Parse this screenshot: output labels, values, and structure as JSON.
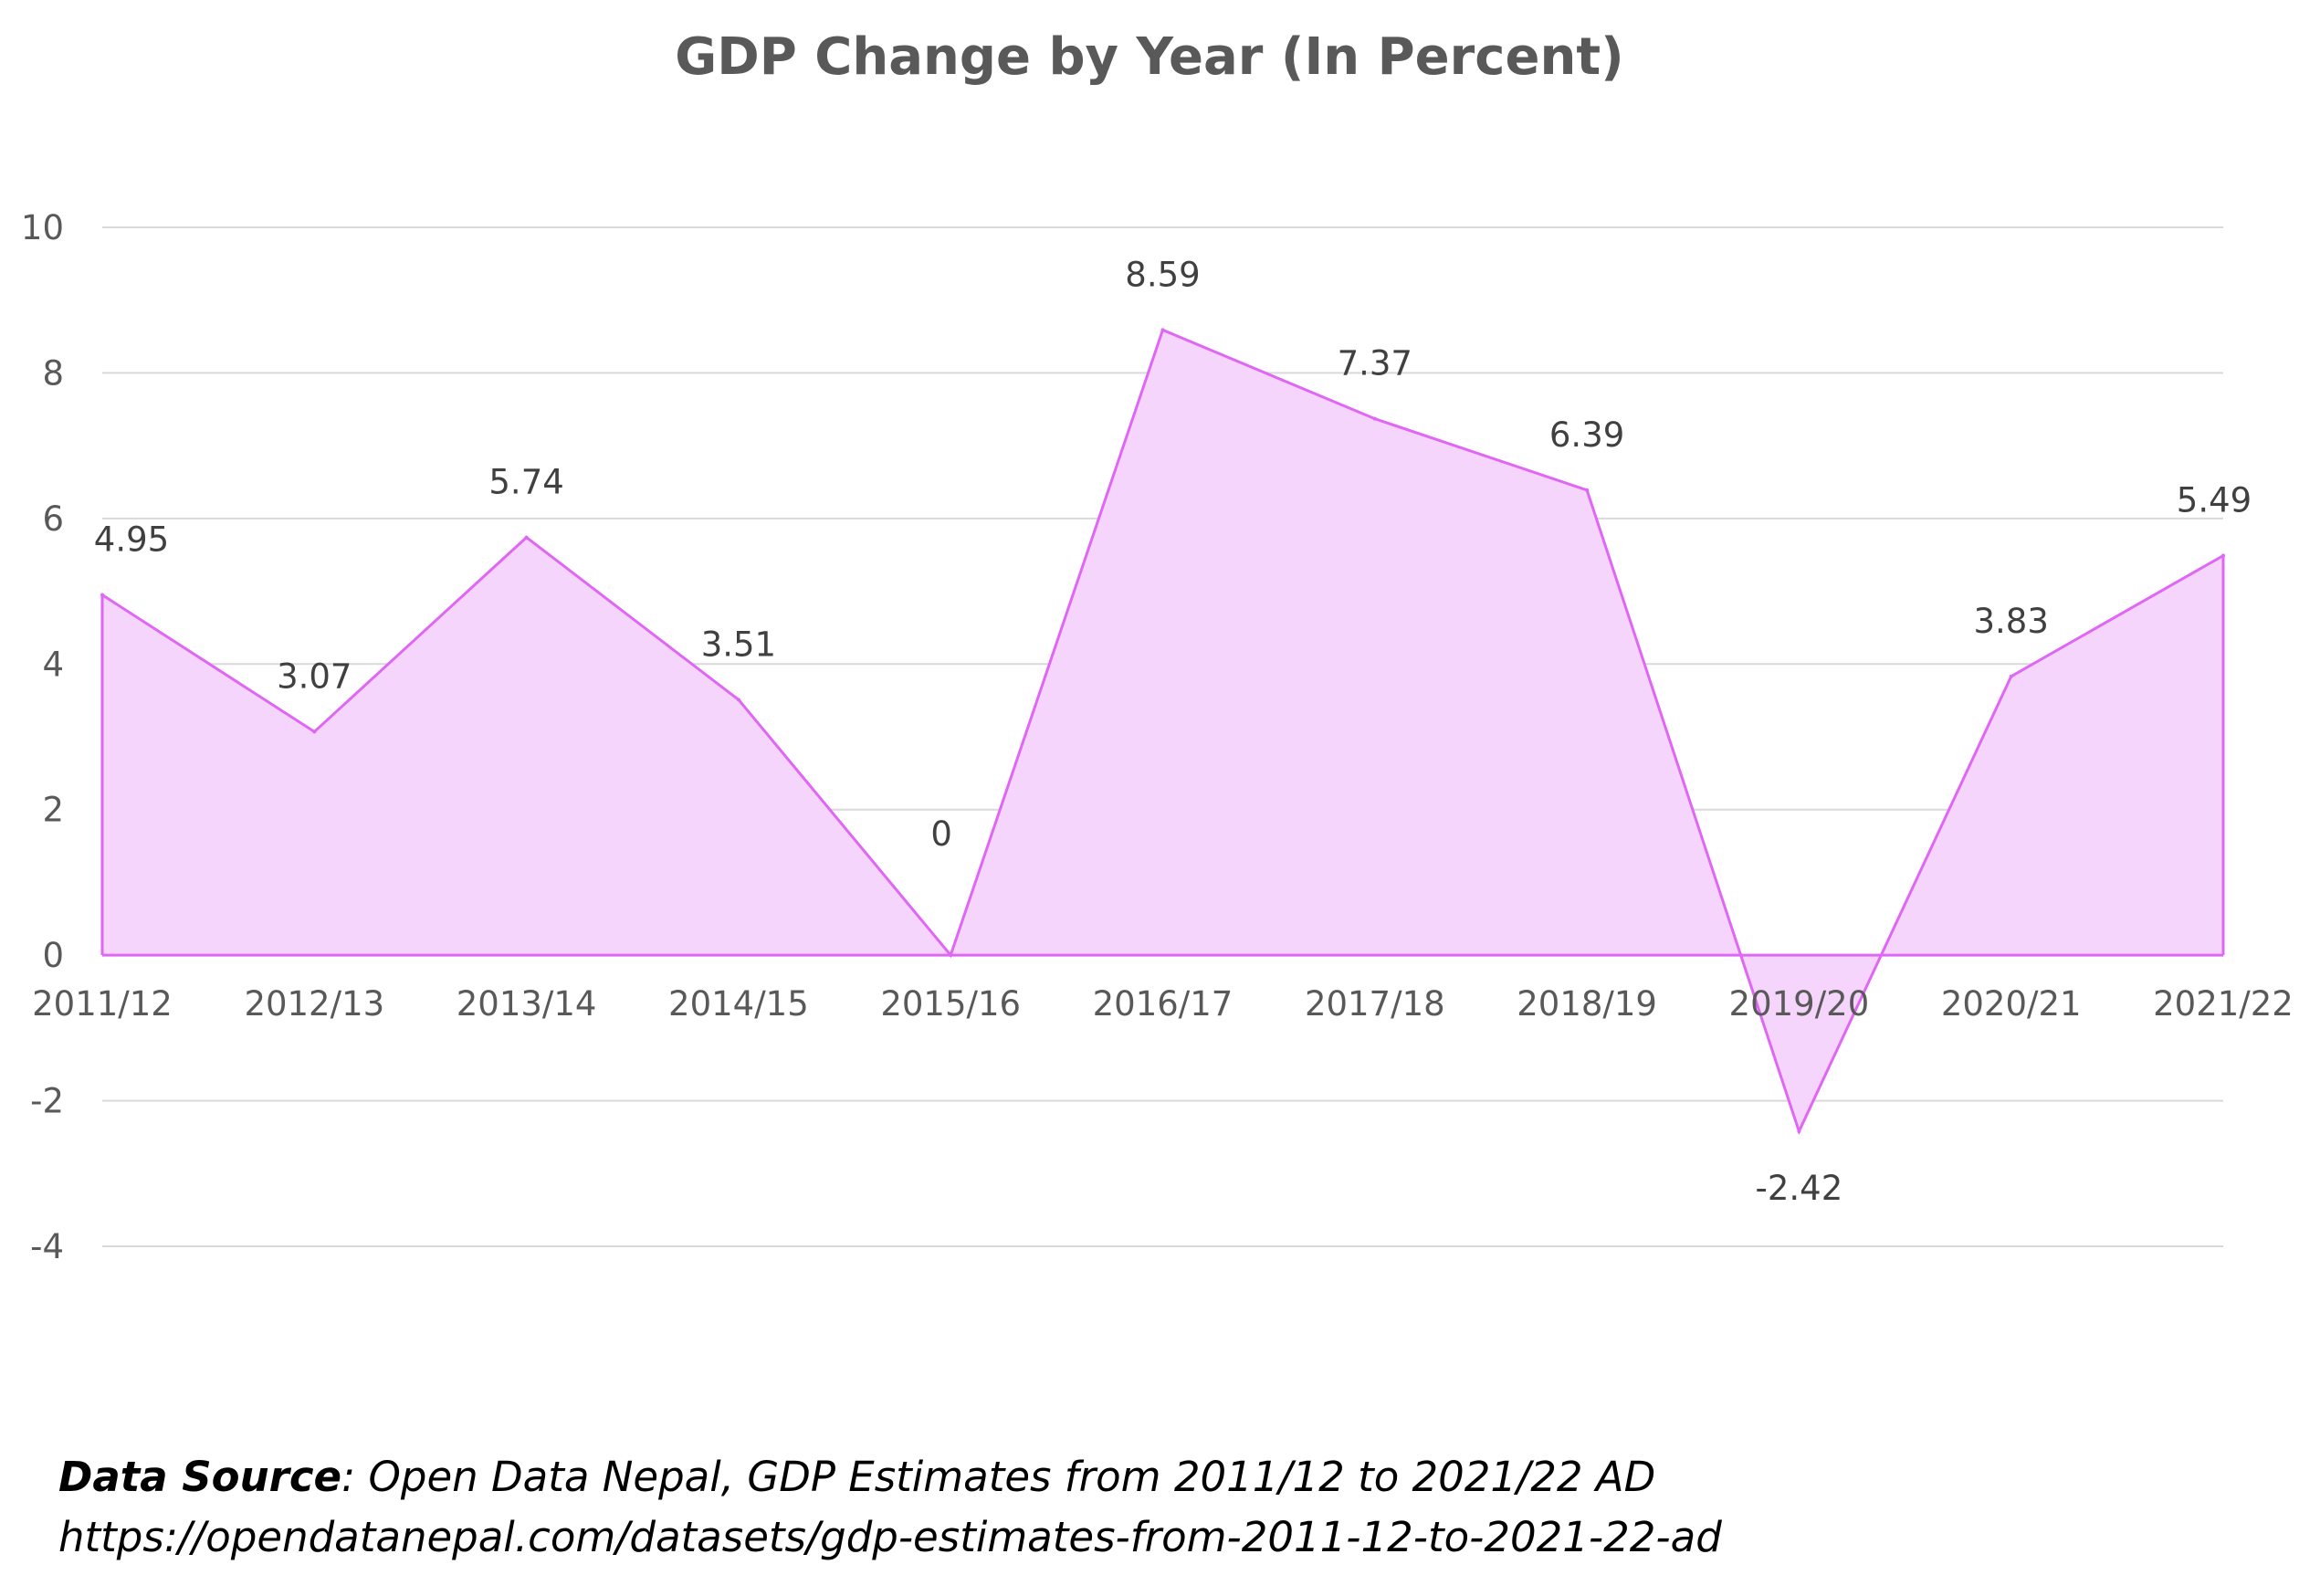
{
  "chart_data": {
    "type": "area",
    "title": "GDP Change by Year (In Percent)",
    "xlabel": "",
    "ylabel": "",
    "categories": [
      "2011/12",
      "2012/13",
      "2013/14",
      "2014/15",
      "2015/16",
      "2016/17",
      "2017/18",
      "2018/19",
      "2019/20",
      "2020/21",
      "2021/22"
    ],
    "values": [
      4.95,
      3.07,
      5.74,
      3.51,
      0,
      8.59,
      7.37,
      6.39,
      -2.42,
      3.83,
      5.49
    ],
    "data_labels": [
      "4.95",
      "3.07",
      "5.74",
      "3.51",
      "0",
      "8.59",
      "7.37",
      "6.39",
      "-2.42",
      "3.83",
      "5.49"
    ],
    "ylim": [
      -4,
      10
    ],
    "yticks": [
      10,
      8,
      6,
      4,
      2,
      0,
      -2,
      -4
    ],
    "ytick_labels": [
      "10",
      "8",
      "6",
      "4",
      "2",
      "0",
      "-2",
      "-4"
    ],
    "grid": true,
    "legend": "none",
    "colors": {
      "fill": "#f5d5fb",
      "line": "#e066f5",
      "grid": "#d9d9d9"
    }
  },
  "source": {
    "label": "Data Source",
    "text": ": Open Data Nepal,  GDP Estimates from 2011/12 to 2021/22 AD",
    "url": "https://opendatanepal.com/datasets/gdp-estimates-from-2011-12-to-2021-22-ad"
  }
}
